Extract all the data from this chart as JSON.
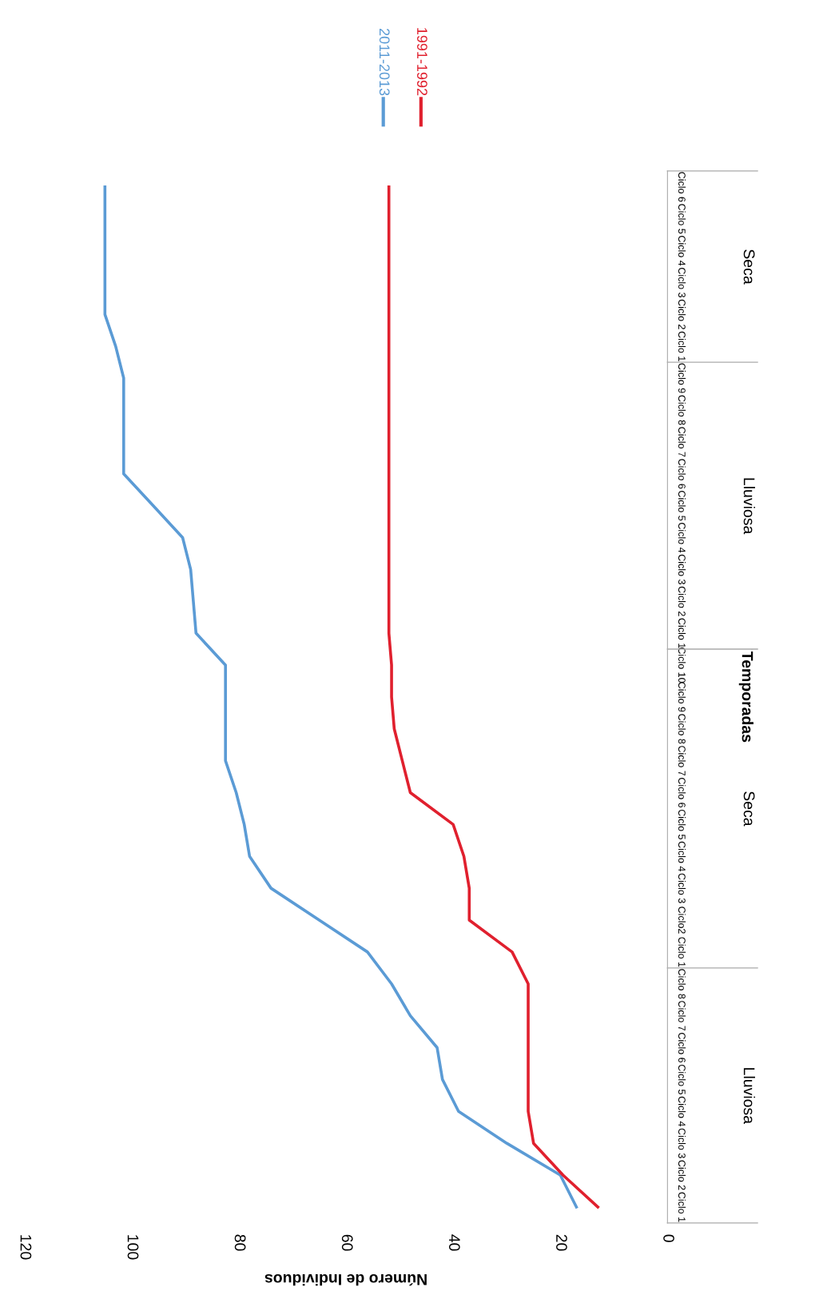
{
  "chart_data": {
    "type": "line",
    "orientation": "horizontal",
    "xlabel": "Número de Individuos",
    "ylabel": "Temporadas",
    "categories": [
      "Ciclo 6",
      "Ciclo 5",
      "Ciclo 4",
      "Ciclo 3",
      "Ciclo 2",
      "Ciclo 1",
      "Ciclo 9",
      "Ciclo 8",
      "Ciclo 7",
      "Ciclo 6",
      "Ciclo 5",
      "Ciclo 4",
      "Ciclo 3",
      "Ciclo 2",
      "Ciclo 1",
      "Ciclo 10",
      "Ciclo 9",
      "Ciclo 8",
      "Ciclo 7",
      "Ciclo 6",
      "Ciclo 5",
      "Ciclo 4",
      "Ciclo 3",
      "Ciclo2",
      "Ciclo 1",
      "Ciclo 8",
      "Ciclo 7",
      "Ciclo 6",
      "Ciclo 5",
      "Ciclo 4",
      "Ciclo 3",
      "Ciclo 2",
      "Ciclo 1"
    ],
    "annotations": [
      "Seca",
      "Lluviosa",
      "Seca",
      "Lluviosa"
    ],
    "series": [
      {
        "name": "2011-2013",
        "color": "#5b9bd5",
        "values": [
          105,
          105,
          105,
          105,
          105,
          103,
          101.5,
          101.5,
          101.5,
          101.5,
          96,
          90.5,
          89,
          88.5,
          88,
          82.5,
          82.5,
          82.5,
          82.5,
          80.5,
          79,
          78,
          74,
          65,
          56,
          51.5,
          48,
          43,
          42,
          39,
          30,
          20,
          17
        ]
      },
      {
        "name": "1991-1992",
        "color": "#e0202e",
        "values": [
          52,
          52,
          52,
          52,
          52,
          52,
          52,
          52,
          52,
          52,
          52,
          52,
          52,
          52,
          52,
          51.5,
          51.5,
          51,
          49.5,
          48,
          40,
          38,
          37,
          37,
          29,
          26,
          26,
          26,
          26,
          26,
          25,
          19.5,
          13
        ]
      }
    ],
    "xlim": [
      120,
      0
    ],
    "xticks": [
      120,
      100,
      80,
      60,
      40,
      20,
      0
    ],
    "legend": "top right",
    "line_style": "solid",
    "marker": "none"
  }
}
